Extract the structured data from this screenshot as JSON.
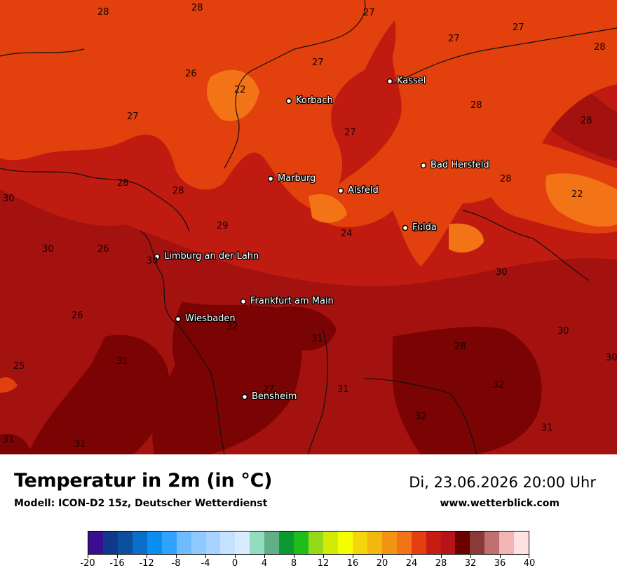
{
  "header": {
    "title": "Temperatur in 2m (in °C)",
    "subtitle": "Modell: ICON-D2 15z, Deutscher Wetterdienst",
    "datetime": "Di, 23.06.2026 20:00 Uhr",
    "website": "www.wetterblick.com"
  },
  "cities": [
    {
      "name": "Kassel",
      "label": "Kassel"
    },
    {
      "name": "korbach",
      "label": "Korbach"
    },
    {
      "name": "bad-hersfeld",
      "label": "Bad Hersfeld"
    },
    {
      "name": "marburg",
      "label": "Marburg"
    },
    {
      "name": "alsfeld",
      "label": "Alsfeld"
    },
    {
      "name": "fulda",
      "label": "Fulda"
    },
    {
      "name": "limburg",
      "label": "Limburg an der Lahn"
    },
    {
      "name": "frankfurt",
      "label": "Frankfurt am Main"
    },
    {
      "name": "wiesbaden",
      "label": "Wiesbaden"
    },
    {
      "name": "bensheim",
      "label": "Bensheim"
    }
  ],
  "values": [
    "28",
    "28",
    "27",
    "27",
    "27",
    "28",
    "26",
    "27",
    "22",
    "27",
    "28",
    "27",
    "28",
    "28",
    "28",
    "30",
    "28",
    "22",
    "29",
    "30",
    "26",
    "24",
    "28",
    "30",
    "30",
    "26",
    "32",
    "31",
    "30",
    "28",
    "30",
    "25",
    "31",
    "27",
    "31",
    "32",
    "32",
    "31",
    "31",
    "31"
  ],
  "legend": {
    "colors": [
      "#3a0f8f",
      "#10398c",
      "#0b4f9e",
      "#0a6ec8",
      "#0a8ef0",
      "#2fa3ff",
      "#6fbbff",
      "#8ec9ff",
      "#a6d3ff",
      "#c4e2ff",
      "#d9ecff",
      "#92dcbf",
      "#5fb089",
      "#0c9a30",
      "#1ebd19",
      "#95d91b",
      "#d0ec06",
      "#f6ff00",
      "#f4d60d",
      "#f2b80f",
      "#f39313",
      "#f27417",
      "#e4400f",
      "#c51c13",
      "#b4141a",
      "#6b0000",
      "#8b3a3a",
      "#c07070",
      "#f2b4b4",
      "#ffe1e1"
    ],
    "ticks": [
      "-20",
      "-16",
      "-12",
      "-8",
      "-4",
      "0",
      "4",
      "8",
      "12",
      "16",
      "20",
      "24",
      "28",
      "32",
      "36",
      "40"
    ]
  }
}
